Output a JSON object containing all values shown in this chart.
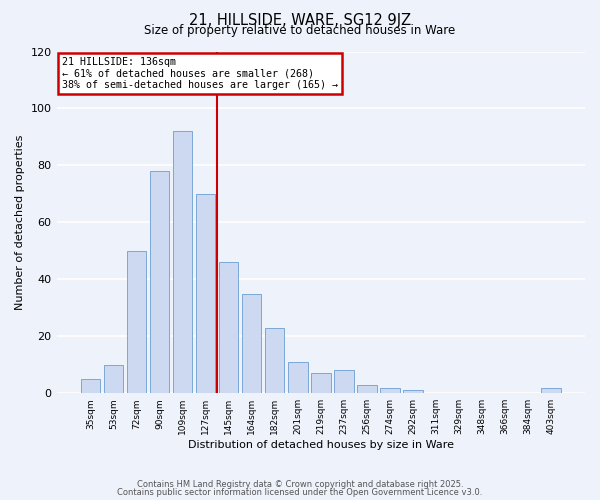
{
  "title": "21, HILLSIDE, WARE, SG12 9JZ",
  "subtitle": "Size of property relative to detached houses in Ware",
  "xlabel": "Distribution of detached houses by size in Ware",
  "ylabel": "Number of detached properties",
  "bar_color": "#ccd9f0",
  "bar_edge_color": "#7aa8d8",
  "background_color": "#eef2fb",
  "grid_color": "#ffffff",
  "categories": [
    "35sqm",
    "53sqm",
    "72sqm",
    "90sqm",
    "109sqm",
    "127sqm",
    "145sqm",
    "164sqm",
    "182sqm",
    "201sqm",
    "219sqm",
    "237sqm",
    "256sqm",
    "274sqm",
    "292sqm",
    "311sqm",
    "329sqm",
    "348sqm",
    "366sqm",
    "384sqm",
    "403sqm"
  ],
  "values": [
    5,
    10,
    50,
    78,
    92,
    70,
    46,
    35,
    23,
    11,
    7,
    8,
    3,
    2,
    1,
    0,
    0,
    0,
    0,
    0,
    2
  ],
  "ylim": [
    0,
    120
  ],
  "yticks": [
    0,
    20,
    40,
    60,
    80,
    100,
    120
  ],
  "vline_index": 5.5,
  "vline_color": "#cc0000",
  "annotation_title": "21 HILLSIDE: 136sqm",
  "annotation_line1": "← 61% of detached houses are smaller (268)",
  "annotation_line2": "38% of semi-detached houses are larger (165) →",
  "annotation_box_edge": "#cc0000",
  "footer1": "Contains HM Land Registry data © Crown copyright and database right 2025.",
  "footer2": "Contains public sector information licensed under the Open Government Licence v3.0."
}
